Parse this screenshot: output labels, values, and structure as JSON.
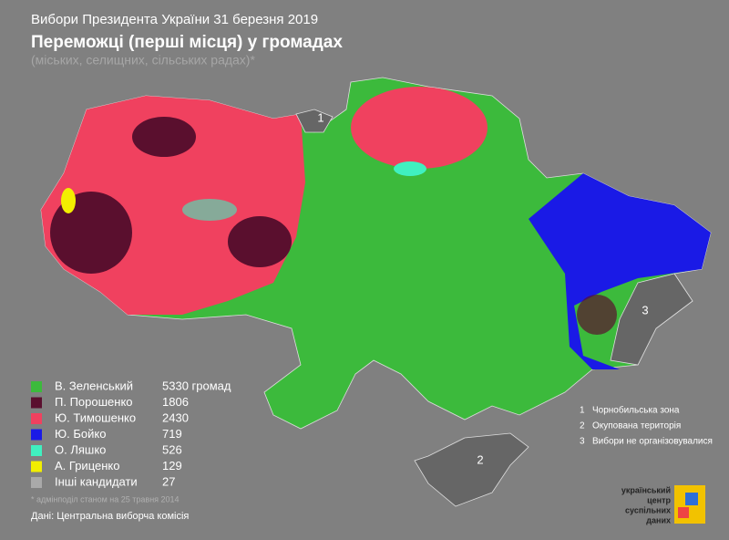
{
  "header": {
    "title_line1": "Вибори Президента України 31 березня 2019",
    "title": "Переможці (перші місця) у громадах",
    "subtitle": "(міських, селищних, сільських радах)*"
  },
  "legend": [
    {
      "label": "В. Зеленський",
      "count": "5330 громад",
      "color": "#3cba3c"
    },
    {
      "label": "П. Порошенко",
      "count": "1806",
      "color": "#5a0f2e"
    },
    {
      "label": "Ю. Тимошенко",
      "count": "2430",
      "color": "#f0415f"
    },
    {
      "label": "Ю. Бойко",
      "count": "719",
      "color": "#1a1ae6"
    },
    {
      "label": "О. Ляшко",
      "count": "526",
      "color": "#40f0c0"
    },
    {
      "label": "А. Гриценко",
      "count": "129",
      "color": "#f2ee00"
    },
    {
      "label": "Інші кандидати",
      "count": "27",
      "color": "#a9a9a9"
    }
  ],
  "notes": [
    {
      "marker": "1",
      "text": "Чорнобильська зона"
    },
    {
      "marker": "2",
      "text": "Окупована територія"
    },
    {
      "marker": "3",
      "text": "Вибори не організовувалися"
    }
  ],
  "map_markers": [
    "1",
    "2",
    "3"
  ],
  "footnote": "* адмінподіл станом на 25 травня 2014",
  "source": "Дані: Центральна виборча комісія",
  "logo": [
    "український",
    "центр",
    "суспільних",
    "даних"
  ]
}
